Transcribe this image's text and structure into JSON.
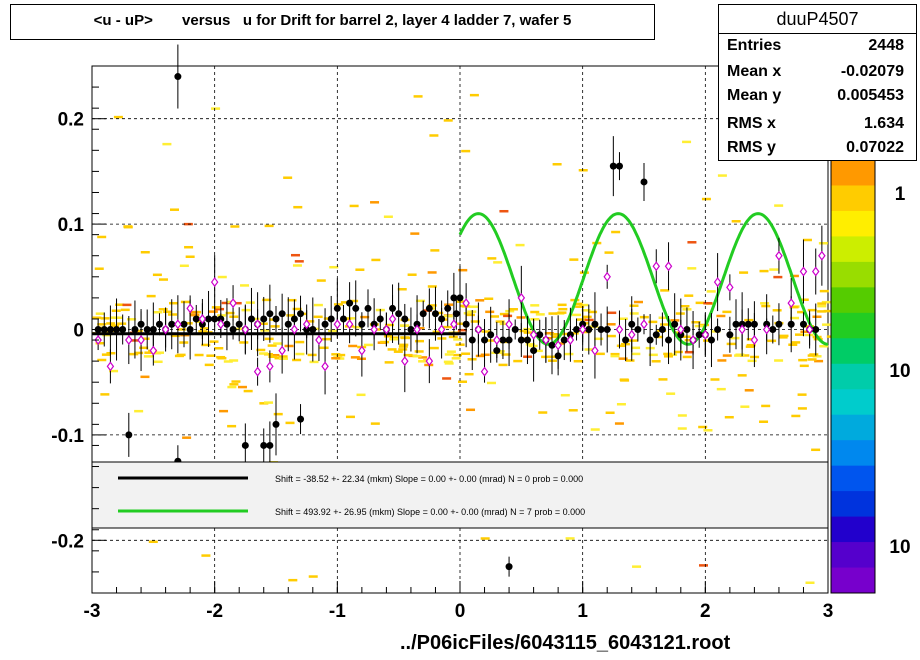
{
  "chart_data": {
    "type": "scatter",
    "title": "<u - uP>       versus   u for Drift for barrel 2, layer 4 ladder 7, wafer 5",
    "xlabel": "../P06icFiles/6043115_6043121.root",
    "ylabel": "",
    "xlim": [
      -3,
      3
    ],
    "ylim": [
      -0.25,
      0.25
    ],
    "x_ticks": [
      "-3",
      "-2",
      "-1",
      "0",
      "1",
      "2",
      "3"
    ],
    "y_ticks": [
      "-0.2",
      "-0.1",
      "0",
      "0.1",
      "0.2"
    ],
    "grid": true,
    "stats": {
      "name": "duuP4507",
      "rows": [
        {
          "label": "Entries",
          "value": "2448"
        },
        {
          "label": "Mean x",
          "value": "-0.02079"
        },
        {
          "label": "Mean y",
          "value": "0.005453"
        },
        {
          "label": "RMS x",
          "value": "1.634"
        },
        {
          "label": "RMS y",
          "value": "0.07022"
        }
      ]
    },
    "palette_labels": [
      "1",
      "10",
      "10"
    ],
    "legend": {
      "placement": "lower-center",
      "entries": [
        {
          "color": "#000000",
          "text": "Shift =   -38.52 +- 22.34 (mkm) Slope =     0.00 +- 0.00 (mrad)  N = 0 prob = 0.000"
        },
        {
          "color": "#22cc22",
          "text": "Shift =   493.92 +- 26.95 (mkm) Slope =     0.00 +- 0.00 (mrad)  N = 7 prob = 0.000"
        }
      ]
    },
    "series": [
      {
        "marker": "filled-circle",
        "color": "#000000",
        "points": [
          [
            -2.95,
            0.0
          ],
          [
            -2.9,
            0.0
          ],
          [
            -2.85,
            0.0
          ],
          [
            -2.8,
            0.0
          ],
          [
            -2.75,
            0.0
          ],
          [
            -2.7,
            -0.1
          ],
          [
            -2.65,
            0.0
          ],
          [
            -2.6,
            0.005
          ],
          [
            -2.55,
            0.0
          ],
          [
            -2.5,
            0.0
          ],
          [
            -2.45,
            0.005
          ],
          [
            -2.4,
            0.0
          ],
          [
            -2.35,
            0.005
          ],
          [
            -2.3,
            0.24
          ],
          [
            -2.3,
            -0.125
          ],
          [
            -2.25,
            0.005
          ],
          [
            -2.2,
            0.0
          ],
          [
            -2.15,
            0.01
          ],
          [
            -2.1,
            0.005
          ],
          [
            -2.05,
            0.01
          ],
          [
            -2.0,
            0.01
          ],
          [
            -1.95,
            0.01
          ],
          [
            -1.9,
            0.005
          ],
          [
            -1.85,
            0.0
          ],
          [
            -1.8,
            0.005
          ],
          [
            -1.75,
            0.0
          ],
          [
            -1.7,
            0.01
          ],
          [
            -1.65,
            0.005
          ],
          [
            -1.6,
            0.01
          ],
          [
            -1.55,
            0.015
          ],
          [
            -1.5,
            0.01
          ],
          [
            -1.45,
            0.015
          ],
          [
            -1.4,
            0.005
          ],
          [
            -1.35,
            0.01
          ],
          [
            -1.3,
            0.015
          ],
          [
            -1.25,
            0.0
          ],
          [
            -1.2,
            0.0
          ],
          [
            -1.1,
            0.005
          ],
          [
            -1.05,
            0.01
          ],
          [
            -1.0,
            0.02
          ],
          [
            -0.95,
            0.01
          ],
          [
            -0.9,
            0.025
          ],
          [
            -0.85,
            0.02
          ],
          [
            -0.8,
            0.005
          ],
          [
            -0.75,
            0.02
          ],
          [
            -0.7,
            0.005
          ],
          [
            -0.65,
            0.01
          ],
          [
            -0.6,
            0.0
          ],
          [
            -0.55,
            0.02
          ],
          [
            -0.5,
            0.015
          ],
          [
            -0.45,
            0.01
          ],
          [
            -0.4,
            0.0
          ],
          [
            -0.35,
            0.005
          ],
          [
            -0.3,
            0.015
          ],
          [
            -0.25,
            0.02
          ],
          [
            -0.2,
            0.015
          ],
          [
            -0.15,
            0.01
          ],
          [
            -0.1,
            0.02
          ],
          [
            -0.05,
            0.03
          ],
          [
            0.0,
            0.03
          ],
          [
            -0.03,
            0.015
          ],
          [
            0.05,
            0.005
          ],
          [
            0.1,
            -0.01
          ],
          [
            0.15,
            0.0
          ],
          [
            0.2,
            -0.01
          ],
          [
            0.25,
            -0.005
          ],
          [
            0.3,
            -0.02
          ],
          [
            0.35,
            -0.01
          ],
          [
            0.4,
            -0.01
          ],
          [
            0.45,
            0.0
          ],
          [
            0.5,
            -0.01
          ],
          [
            0.55,
            -0.01
          ],
          [
            0.6,
            -0.02
          ],
          [
            0.65,
            -0.005
          ],
          [
            0.7,
            -0.01
          ],
          [
            0.75,
            -0.015
          ],
          [
            0.8,
            -0.025
          ],
          [
            0.85,
            -0.01
          ],
          [
            0.9,
            -0.005
          ],
          [
            0.95,
            0.0
          ],
          [
            1.0,
            0.005
          ],
          [
            1.05,
            0.0
          ],
          [
            1.1,
            0.005
          ],
          [
            1.15,
            0.0
          ],
          [
            1.2,
            0.0
          ],
          [
            1.25,
            0.155
          ],
          [
            1.3,
            0.155
          ],
          [
            1.35,
            -0.01
          ],
          [
            1.4,
            0.005
          ],
          [
            1.45,
            0.0
          ],
          [
            1.5,
            0.14
          ],
          [
            1.55,
            -0.01
          ],
          [
            1.6,
            -0.005
          ],
          [
            1.65,
            0.0
          ],
          [
            1.7,
            -0.01
          ],
          [
            1.75,
            0.005
          ],
          [
            1.8,
            -0.005
          ],
          [
            1.85,
            0.0
          ],
          [
            1.9,
            -0.01
          ],
          [
            1.95,
            -0.005
          ],
          [
            2.0,
            -0.005
          ],
          [
            2.05,
            -0.01
          ],
          [
            2.1,
            0.0
          ],
          [
            2.2,
            -0.005
          ],
          [
            2.25,
            0.005
          ],
          [
            2.3,
            0.005
          ],
          [
            2.35,
            0.005
          ],
          [
            2.4,
            0.005
          ],
          [
            2.5,
            0.005
          ],
          [
            2.55,
            0.0
          ],
          [
            2.6,
            0.005
          ],
          [
            2.7,
            0.005
          ],
          [
            2.8,
            0.005
          ],
          [
            2.85,
            0.0
          ],
          [
            2.9,
            0.0
          ],
          [
            0.4,
            -0.225
          ],
          [
            -1.6,
            -0.11
          ],
          [
            -1.55,
            -0.11
          ],
          [
            -1.5,
            -0.09
          ],
          [
            -1.3,
            -0.085
          ],
          [
            -1.75,
            -0.11
          ]
        ]
      },
      {
        "marker": "open-diamond",
        "color": "#cc00cc",
        "points": [
          [
            -2.95,
            -0.01
          ],
          [
            -2.85,
            -0.035
          ],
          [
            -2.7,
            -0.01
          ],
          [
            -2.6,
            -0.01
          ],
          [
            -2.5,
            -0.02
          ],
          [
            -2.4,
            0.0
          ],
          [
            -2.3,
            0.005
          ],
          [
            -2.2,
            0.02
          ],
          [
            -2.1,
            0.01
          ],
          [
            -2.0,
            0.045
          ],
          [
            -1.95,
            0.005
          ],
          [
            -1.85,
            0.025
          ],
          [
            -1.75,
            0.0
          ],
          [
            -1.65,
            0.005
          ],
          [
            -1.55,
            -0.035
          ],
          [
            -1.45,
            -0.02
          ],
          [
            -1.35,
            0.0
          ],
          [
            -1.25,
            0.005
          ],
          [
            -1.15,
            -0.01
          ],
          [
            -1.1,
            -0.035
          ],
          [
            -1.0,
            0.005
          ],
          [
            -0.9,
            0.005
          ],
          [
            -0.8,
            -0.02
          ],
          [
            -0.7,
            0.0
          ],
          [
            -0.6,
            0.0
          ],
          [
            -0.55,
            0.01
          ],
          [
            -0.45,
            -0.03
          ],
          [
            -0.35,
            0.0
          ],
          [
            -0.25,
            -0.03
          ],
          [
            -0.15,
            0.0
          ],
          [
            -0.05,
            0.005
          ],
          [
            0.05,
            0.025
          ],
          [
            0.15,
            0.0
          ],
          [
            0.2,
            -0.04
          ],
          [
            0.3,
            -0.01
          ],
          [
            0.4,
            0.005
          ],
          [
            0.5,
            0.03
          ],
          [
            0.6,
            -0.005
          ],
          [
            0.7,
            -0.01
          ],
          [
            0.8,
            -0.015
          ],
          [
            0.9,
            -0.01
          ],
          [
            1.0,
            0.0
          ],
          [
            1.1,
            -0.02
          ],
          [
            1.2,
            0.05
          ],
          [
            1.3,
            0.0
          ],
          [
            1.4,
            -0.005
          ],
          [
            1.5,
            0.005
          ],
          [
            1.6,
            0.06
          ],
          [
            1.7,
            0.06
          ],
          [
            1.8,
            0.0
          ],
          [
            1.9,
            -0.01
          ],
          [
            2.0,
            -0.005
          ],
          [
            2.1,
            0.045
          ],
          [
            2.2,
            0.04
          ],
          [
            2.3,
            0.0
          ],
          [
            2.4,
            -0.01
          ],
          [
            2.5,
            0.0
          ],
          [
            2.6,
            0.07
          ],
          [
            2.7,
            0.025
          ],
          [
            2.8,
            0.055
          ],
          [
            2.85,
            0.0
          ],
          [
            2.9,
            0.055
          ],
          [
            2.95,
            0.07
          ],
          [
            -1.65,
            -0.04
          ]
        ]
      }
    ],
    "fit_curve": {
      "color": "#22cc22",
      "x_range": [
        0.0,
        3.0
      ],
      "offset": 0.048,
      "amplitude": 0.062,
      "period": 1.14,
      "phase_x": 0.15
    }
  }
}
